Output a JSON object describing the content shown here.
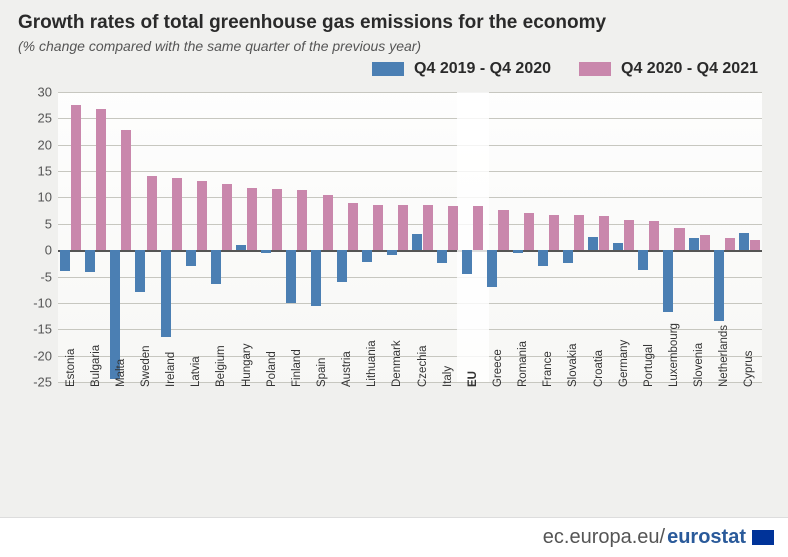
{
  "title": "Growth rates of total greenhouse gas emissions for the economy",
  "subtitle": "(% change compared with the same quarter of the previous year)",
  "legend": {
    "series1": {
      "label": "Q4 2019 - Q4 2020",
      "color": "#4b7fb3"
    },
    "series2": {
      "label": "Q4 2020 - Q4 2021",
      "color": "#c987ac"
    }
  },
  "chart": {
    "type": "bar",
    "ylim": [
      -25,
      30
    ],
    "yticks": [
      -25,
      -20,
      -15,
      -10,
      -5,
      0,
      5,
      10,
      15,
      20,
      25,
      30
    ],
    "grid_color": "#c7c7c0",
    "zero_color": "#555555",
    "background": "#f0f0ee",
    "plot_bg": "#ffffff",
    "bar_group_width_ratio": 0.82,
    "highlight_color": "rgba(255,255,255,0.8)",
    "highlight_index": 16,
    "label_fontsize": 11.5,
    "tick_fontsize": 13,
    "categories": [
      {
        "label": "Estonia",
        "s1": -4.0,
        "s2": 27.6
      },
      {
        "label": "Bulgaria",
        "s1": -4.2,
        "s2": 26.8
      },
      {
        "label": "Malta",
        "s1": -24.5,
        "s2": 22.8
      },
      {
        "label": "Sweden",
        "s1": -8.0,
        "s2": 14.0
      },
      {
        "label": "Ireland",
        "s1": -16.5,
        "s2": 13.7
      },
      {
        "label": "Latvia",
        "s1": -3.0,
        "s2": 13.2
      },
      {
        "label": "Belgium",
        "s1": -6.5,
        "s2": 12.5
      },
      {
        "label": "Hungary",
        "s1": 1.0,
        "s2": 11.8
      },
      {
        "label": "Poland",
        "s1": -0.5,
        "s2": 11.6
      },
      {
        "label": "Finland",
        "s1": -10.0,
        "s2": 11.4
      },
      {
        "label": "Spain",
        "s1": -10.5,
        "s2": 10.4
      },
      {
        "label": "Austria",
        "s1": -6.0,
        "s2": 9.0
      },
      {
        "label": "Lithuania",
        "s1": -2.3,
        "s2": 8.6
      },
      {
        "label": "Denmark",
        "s1": -1.0,
        "s2": 8.6
      },
      {
        "label": "Czechia",
        "s1": 3.0,
        "s2": 8.5
      },
      {
        "label": "Italy",
        "s1": -2.5,
        "s2": 8.4
      },
      {
        "label": "EU",
        "s1": -4.5,
        "s2": 8.3,
        "bold": true
      },
      {
        "label": "Greece",
        "s1": -7.0,
        "s2": 7.6
      },
      {
        "label": "Romania",
        "s1": -0.5,
        "s2": 7.0
      },
      {
        "label": "France",
        "s1": -3.0,
        "s2": 6.7
      },
      {
        "label": "Slovakia",
        "s1": -2.5,
        "s2": 6.6
      },
      {
        "label": "Croatia",
        "s1": 2.5,
        "s2": 6.4
      },
      {
        "label": "Germany",
        "s1": 1.4,
        "s2": 5.8
      },
      {
        "label": "Portugal",
        "s1": -3.8,
        "s2": 5.5
      },
      {
        "label": "Luxembourg",
        "s1": -11.7,
        "s2": 4.2
      },
      {
        "label": "Slovenia",
        "s1": 2.4,
        "s2": 2.8
      },
      {
        "label": "Netherlands",
        "s1": -13.5,
        "s2": 2.4
      },
      {
        "label": "Cyprus",
        "s1": 3.3,
        "s2": 2.0
      }
    ]
  },
  "footer": {
    "url_prefix": "ec.europa.eu/",
    "url_brand": "eurostat",
    "flag_bg": "#003399"
  }
}
